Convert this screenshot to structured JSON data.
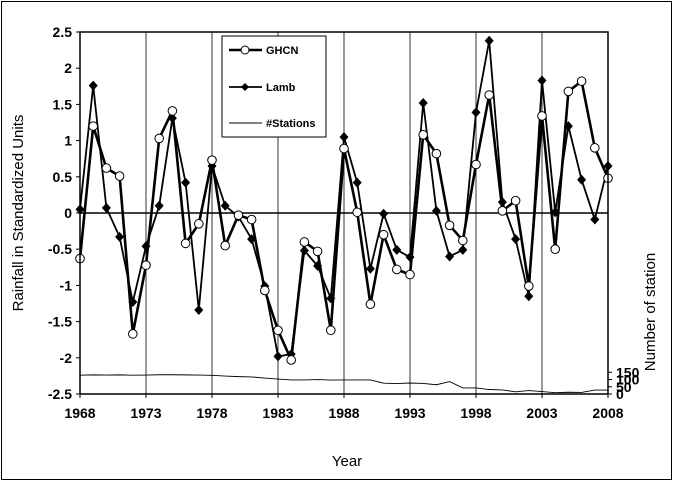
{
  "chart_data": {
    "type": "line",
    "xlabel": "Year",
    "ylabel": "Rainfall in Standardized Units",
    "y2label": "Number of station",
    "xlim": [
      1968,
      2008
    ],
    "ylim": [
      -2.5,
      2.5
    ],
    "y2lim": [
      0,
      2500
    ],
    "x_ticks": [
      1968,
      1973,
      1978,
      1983,
      1988,
      1993,
      1998,
      2003,
      2008
    ],
    "y_ticks": [
      -2.5,
      -2,
      -1.5,
      -1,
      -0.5,
      0,
      0.5,
      1,
      1.5,
      2,
      2.5
    ],
    "y2_ticks": [
      0,
      50,
      100,
      150
    ],
    "grid": "vertical lines every 5 years",
    "legend_position": "top-center",
    "series": [
      {
        "name": "GHCN",
        "axis": "left",
        "marker": "open-circle",
        "x": [
          1968,
          1969,
          1970,
          1971,
          1972,
          1973,
          1974,
          1975,
          1976,
          1977,
          1978,
          1979,
          1980,
          1981,
          1982,
          1983,
          1984,
          1985,
          1986,
          1987,
          1988,
          1989,
          1990,
          1991,
          1992,
          1993,
          1994,
          1995,
          1996,
          1997,
          1998,
          1999,
          2000,
          2001,
          2002,
          2003,
          2004,
          2005,
          2006,
          2007,
          2008
        ],
        "values": [
          -0.63,
          1.2,
          0.62,
          0.51,
          -1.67,
          -0.72,
          1.03,
          1.41,
          -0.42,
          -0.15,
          0.73,
          -0.45,
          -0.03,
          -0.09,
          -1.07,
          -1.62,
          -2.03,
          -0.4,
          -0.53,
          -1.62,
          0.89,
          0.01,
          -1.26,
          -0.3,
          -0.78,
          -0.85,
          1.08,
          0.82,
          -0.17,
          -0.38,
          0.67,
          1.63,
          0.03,
          0.17,
          -1.01,
          1.34,
          -0.5,
          1.68,
          1.82,
          0.9,
          0.48
        ]
      },
      {
        "name": "Lamb",
        "axis": "left",
        "marker": "filled-diamond",
        "x": [
          1968,
          1969,
          1970,
          1971,
          1972,
          1973,
          1974,
          1975,
          1976,
          1977,
          1978,
          1979,
          1980,
          1981,
          1982,
          1983,
          1984,
          1985,
          1986,
          1987,
          1988,
          1989,
          1990,
          1991,
          1992,
          1993,
          1994,
          1995,
          1996,
          1997,
          1998,
          1999,
          2000,
          2001,
          2002,
          2003,
          2004,
          2005,
          2006,
          2007,
          2008
        ],
        "values": [
          0.05,
          1.76,
          0.07,
          -0.33,
          -1.23,
          -0.46,
          0.1,
          1.31,
          0.42,
          -1.34,
          0.65,
          0.1,
          -0.05,
          -0.36,
          -1.01,
          -1.98,
          -1.95,
          -0.52,
          -0.73,
          -1.18,
          1.05,
          0.42,
          -0.77,
          -0.01,
          -0.51,
          -0.61,
          1.52,
          0.03,
          -0.6,
          -0.51,
          1.39,
          2.38,
          0.15,
          -0.36,
          -1.15,
          1.83,
          0.01,
          1.2,
          0.46,
          -0.09,
          0.65
        ]
      },
      {
        "name": "#Stations",
        "axis": "right",
        "marker": "none",
        "x": [
          1968,
          1969,
          1970,
          1971,
          1972,
          1973,
          1974,
          1975,
          1976,
          1977,
          1978,
          1979,
          1980,
          1981,
          1982,
          1983,
          1984,
          1985,
          1986,
          1987,
          1988,
          1989,
          1990,
          1991,
          1992,
          1993,
          1994,
          1995,
          1996,
          1997,
          1998,
          1999,
          2000,
          2001,
          2002,
          2003,
          2004,
          2005,
          2006,
          2007,
          2008
        ],
        "values": [
          130,
          132,
          131,
          132,
          130,
          131,
          133,
          133,
          132,
          131,
          129,
          124,
          120,
          118,
          110,
          103,
          97,
          97,
          100,
          96,
          97,
          97,
          97,
          75,
          72,
          76,
          73,
          64,
          86,
          42,
          42,
          31,
          28,
          15,
          24,
          17,
          9,
          12,
          11,
          27,
          27
        ]
      }
    ]
  }
}
